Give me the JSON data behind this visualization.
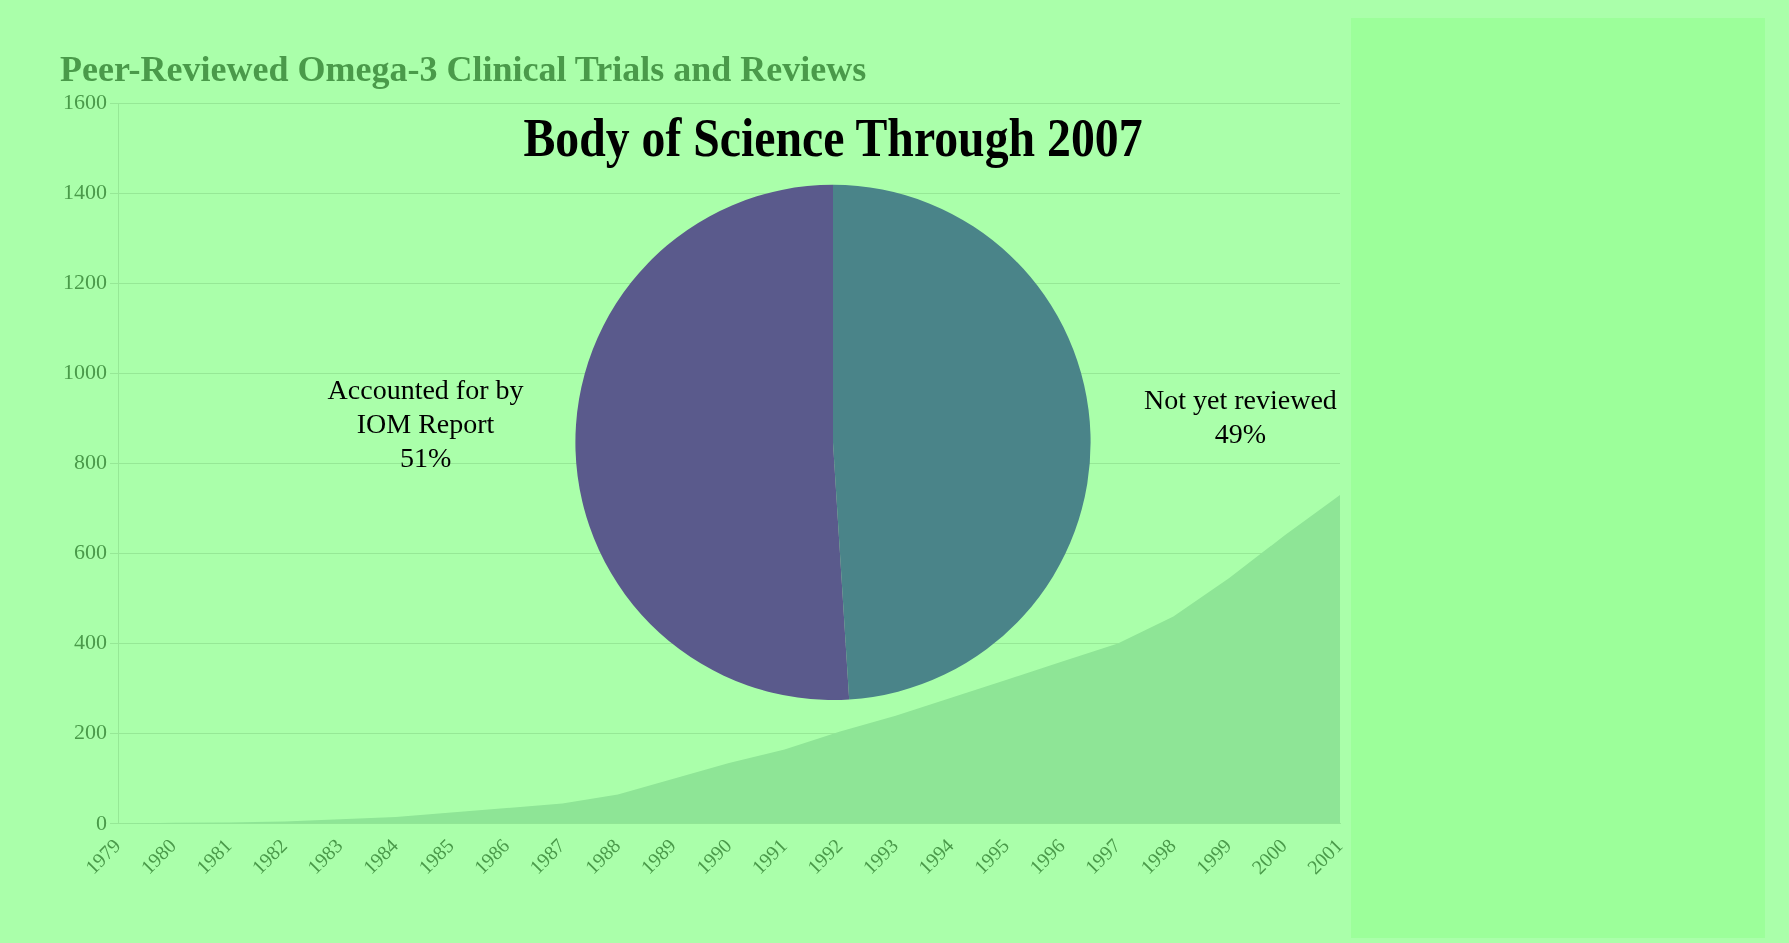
{
  "chart_data": [
    {
      "type": "area",
      "title": "Peer-Reviewed Omega-3 Clinical Trials and Reviews",
      "categories": [
        "1979",
        "1980",
        "1981",
        "1982",
        "1983",
        "1984",
        "1985",
        "1986",
        "1987",
        "1988",
        "1989",
        "1990",
        "1991",
        "1992",
        "1993",
        "1994",
        "1995",
        "1996",
        "1997",
        "1998",
        "1999",
        "2000",
        "2001"
      ],
      "values": [
        0,
        2,
        3,
        5,
        10,
        15,
        25,
        35,
        45,
        65,
        100,
        135,
        165,
        205,
        240,
        280,
        320,
        360,
        400,
        460,
        545,
        640,
        730
      ],
      "color": "#8ee596",
      "ylim": [
        0,
        1600
      ],
      "yticks": [
        0,
        200,
        400,
        600,
        800,
        1000,
        1200,
        1400,
        1600
      ],
      "grid": "y",
      "legend": false
    },
    {
      "type": "pie",
      "title": "Body of Science Through 2007",
      "categories": [
        "Not yet reviewed",
        "Accounted for by IOM Report"
      ],
      "values": [
        49,
        51
      ],
      "colors": [
        "#4a8489",
        "#5a5a8c"
      ],
      "value_labels": [
        "49%",
        "51%"
      ],
      "legend": false
    }
  ]
}
